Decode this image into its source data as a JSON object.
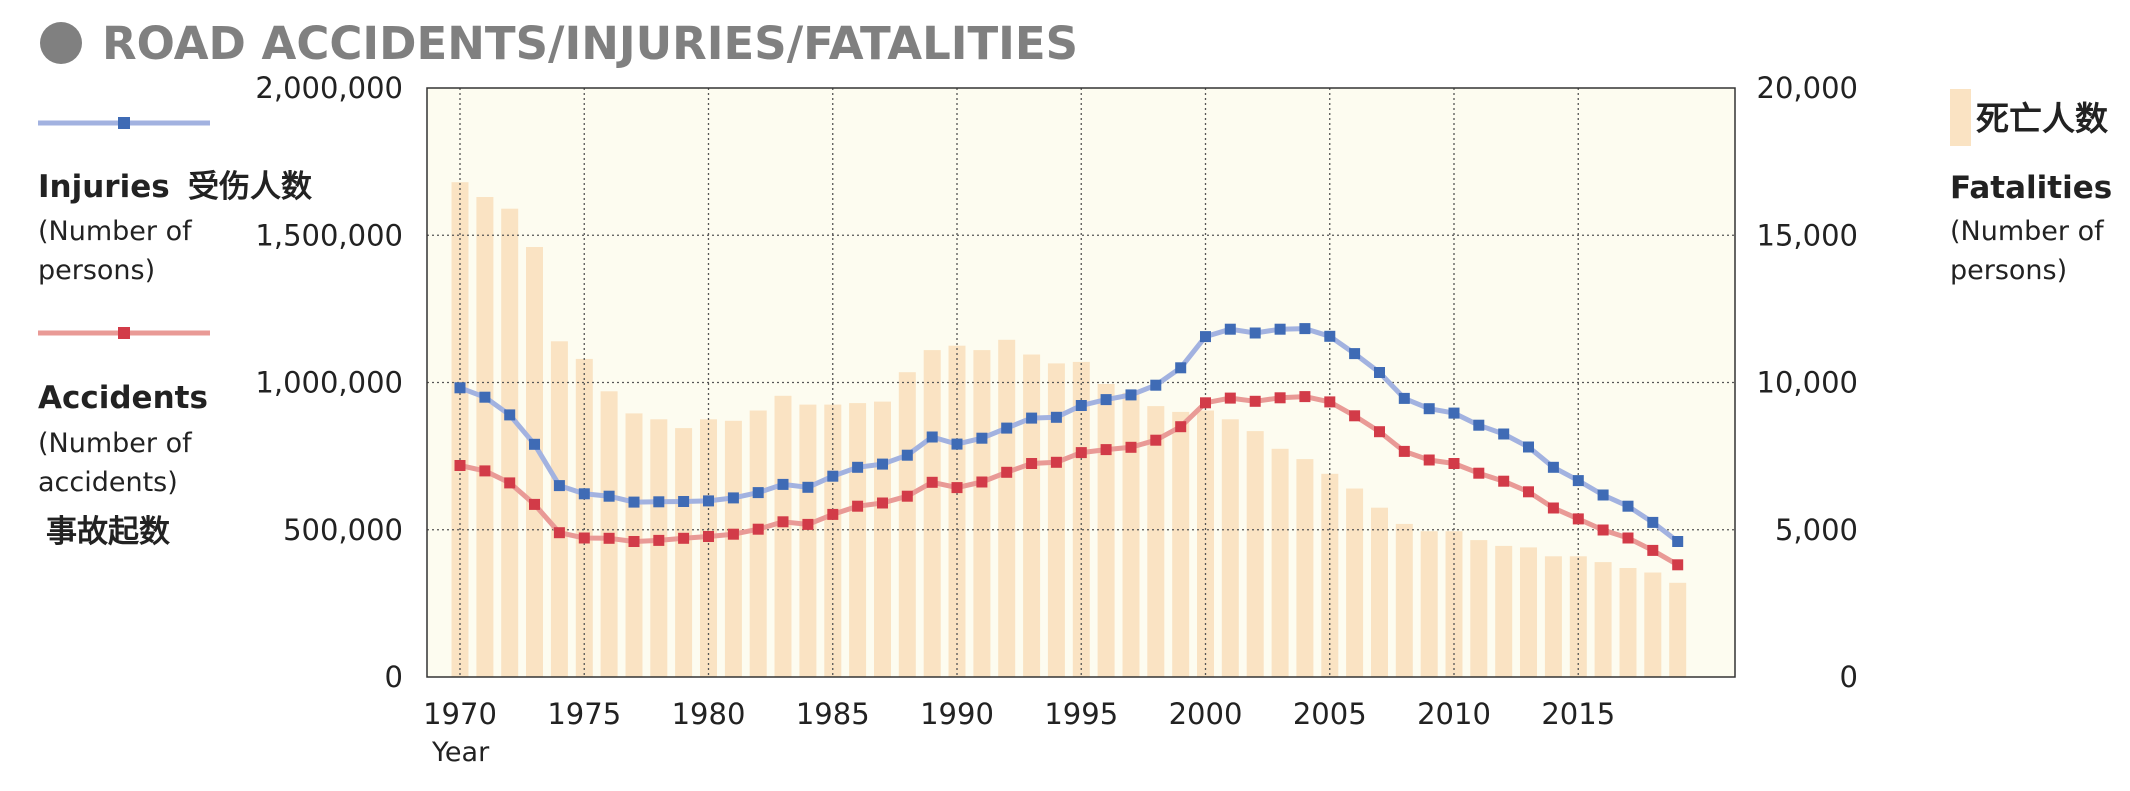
{
  "title": "ROAD ACCIDENTS/INJURIES/FATALITIES",
  "chart_data": {
    "type": "bar+line",
    "title": "ROAD ACCIDENTS/INJURIES/FATALITIES",
    "xlabel": "Year",
    "x": [
      1970,
      1971,
      1972,
      1973,
      1974,
      1975,
      1976,
      1977,
      1978,
      1979,
      1980,
      1981,
      1982,
      1983,
      1984,
      1985,
      1986,
      1987,
      1988,
      1989,
      1990,
      1991,
      1992,
      1993,
      1994,
      1995,
      1996,
      1997,
      1998,
      1999,
      2000,
      2001,
      2002,
      2003,
      2004,
      2005,
      2006,
      2007,
      2008,
      2009,
      2010,
      2011,
      2012,
      2013,
      2014,
      2015,
      2016,
      2017,
      2018,
      2019
    ],
    "x_ticks": [
      "1970",
      "1975",
      "1980",
      "1985",
      "1990",
      "1995",
      "2000",
      "2005",
      "2010",
      "2015"
    ],
    "left_axis": {
      "ylim": [
        0,
        2000000
      ],
      "ticks": [
        "0",
        "500,000",
        "1,000,000",
        "1,500,000",
        "2,000,000"
      ],
      "tick_values": [
        0,
        500000,
        1000000,
        1500000,
        2000000
      ]
    },
    "right_axis": {
      "ylim": [
        0,
        20000
      ],
      "ticks": [
        "0",
        "5,000",
        "10,000",
        "15,000",
        "20,000"
      ],
      "tick_values": [
        0,
        5000,
        10000,
        15000,
        20000
      ]
    },
    "series": [
      {
        "name": "Injuries",
        "name_jp": "受伤人数",
        "unit_line1": "(Number of",
        "unit_line2": "persons)",
        "axis": "left",
        "type": "line",
        "color": "#3f6bb5",
        "line_color": "#a2b2e0",
        "values": [
          982000,
          950000,
          890000,
          790000,
          650000,
          622000,
          614000,
          594000,
          595000,
          596000,
          598000,
          608000,
          626000,
          654000,
          644000,
          682000,
          712000,
          723000,
          753000,
          815000,
          791000,
          811000,
          845000,
          879000,
          882000,
          922000,
          942000,
          958000,
          991000,
          1050000,
          1156000,
          1181000,
          1168000,
          1181000,
          1183000,
          1157000,
          1098000,
          1034000,
          946000,
          911000,
          896000,
          855000,
          825000,
          781000,
          712000,
          667000,
          618000,
          580000,
          525000,
          460000
        ]
      },
      {
        "name": "Accidents",
        "name_jp": "事故起数",
        "unit_line1": "(Number of",
        "unit_line2": "accidents)",
        "axis": "left",
        "type": "line",
        "color": "#d23b48",
        "line_color": "#e99a96",
        "values": [
          718000,
          700000,
          659000,
          586000,
          490000,
          472000,
          471000,
          460000,
          464000,
          471000,
          477000,
          485000,
          502000,
          527000,
          518000,
          552000,
          580000,
          591000,
          614000,
          661000,
          643000,
          662000,
          695000,
          725000,
          729000,
          762000,
          772000,
          780000,
          804000,
          850000,
          931000,
          947000,
          936000,
          948000,
          952000,
          934000,
          887000,
          833000,
          766000,
          737000,
          725000,
          692000,
          665000,
          629000,
          574000,
          537000,
          499000,
          472000,
          430000,
          381000
        ]
      },
      {
        "name": "Fatalities",
        "name_jp": "死亡人数",
        "unit_line1": "(Number of",
        "unit_line2": "persons)",
        "axis": "right",
        "type": "bar",
        "color": "#fae3c3",
        "values": [
          16800,
          16300,
          15900,
          14600,
          11400,
          10800,
          9700,
          8950,
          8750,
          8450,
          8750,
          8700,
          9050,
          9550,
          9250,
          9250,
          9300,
          9350,
          10350,
          11100,
          11250,
          11100,
          11450,
          10950,
          10650,
          10700,
          9950,
          9650,
          9200,
          9000,
          9050,
          8750,
          8350,
          7750,
          7400,
          6900,
          6400,
          5750,
          5200,
          4950,
          4950,
          4650,
          4450,
          4400,
          4100,
          4100,
          3900,
          3700,
          3550,
          3200
        ]
      }
    ],
    "grid": true,
    "plot_background": "#fdfcf0"
  }
}
